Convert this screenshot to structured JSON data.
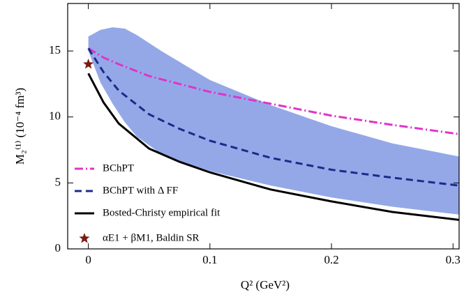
{
  "chart_data": {
    "type": "line",
    "xlabel": "Q² (GeV²)",
    "ylabel": "M₂⁽¹⁾  (10⁻⁴ fm³)",
    "xlim": [
      -0.017,
      0.305
    ],
    "ylim": [
      0,
      18.6
    ],
    "xticks": [
      0,
      0.1,
      0.2,
      0.3
    ],
    "yticks": [
      0,
      5,
      10,
      15
    ],
    "legend": "lower left",
    "band": {
      "color": "#94a8e8",
      "x": [
        0,
        0.01,
        0.02,
        0.03,
        0.04,
        0.06,
        0.08,
        0.1,
        0.15,
        0.2,
        0.25,
        0.305
      ],
      "upper": [
        16.1,
        16.6,
        16.8,
        16.7,
        16.2,
        15.0,
        13.9,
        12.8,
        10.9,
        9.3,
        8.0,
        7.0
      ],
      "lower": [
        15.0,
        12.6,
        11.0,
        9.6,
        8.5,
        7.2,
        6.5,
        5.9,
        4.8,
        3.9,
        3.2,
        2.6
      ]
    },
    "series": [
      {
        "name": "BChPT",
        "color": "#e033c8",
        "dash": "12,4,2,4",
        "x": [
          0,
          0.0125,
          0.025,
          0.05,
          0.075,
          0.1,
          0.15,
          0.2,
          0.25,
          0.305
        ],
        "values": [
          15.2,
          14.5,
          14.0,
          13.1,
          12.5,
          11.9,
          11.0,
          10.1,
          9.4,
          8.7
        ]
      },
      {
        "name": "BChPT with Δ FF",
        "color": "#1c2a8a",
        "dash": "10,6",
        "x": [
          0,
          0.0125,
          0.025,
          0.05,
          0.075,
          0.1,
          0.15,
          0.2,
          0.25,
          0.305
        ],
        "values": [
          15.2,
          13.4,
          12.0,
          10.2,
          9.1,
          8.2,
          6.9,
          6.0,
          5.4,
          4.8
        ]
      },
      {
        "name": "Bosted-Christy empirical fit",
        "color": "#000000",
        "dash": "none",
        "x": [
          0,
          0.0125,
          0.025,
          0.05,
          0.075,
          0.1,
          0.15,
          0.2,
          0.25,
          0.305
        ],
        "values": [
          13.3,
          11.1,
          9.5,
          7.6,
          6.6,
          5.8,
          4.5,
          3.6,
          2.8,
          2.2
        ]
      }
    ],
    "points": [
      {
        "name": "αE1 + βM1, Baldin SR",
        "color": "#7a1a10",
        "x": 0,
        "y": 14.0
      }
    ]
  }
}
